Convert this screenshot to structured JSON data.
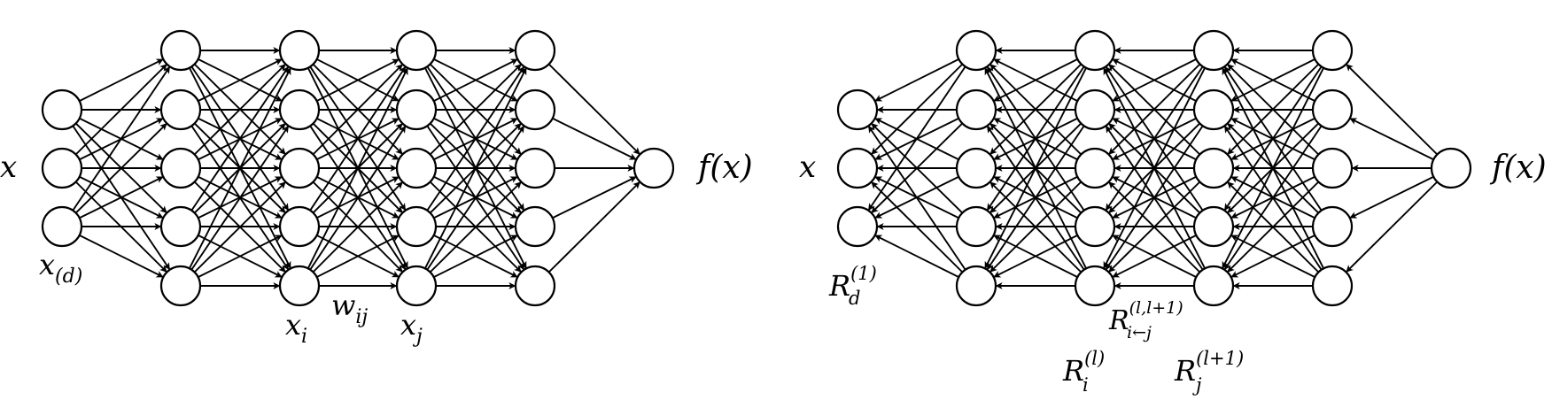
{
  "diagrams": [
    {
      "id": "forward-pass",
      "input_label": "x",
      "output_label": "f(x)",
      "layer_sizes": [
        3,
        5,
        5,
        5,
        5,
        1
      ],
      "edge_direction": "forward",
      "annotations": {
        "input_dim": {
          "base": "x",
          "sub": "(d)"
        },
        "neuron_i": {
          "base": "x",
          "sub": "i"
        },
        "weight": {
          "base": "w",
          "sub": "ij"
        },
        "neuron_j": {
          "base": "x",
          "sub": "j"
        }
      }
    },
    {
      "id": "relevance-backward-pass",
      "input_label": "x",
      "output_label": "f(x)",
      "layer_sizes": [
        3,
        5,
        5,
        5,
        5,
        1
      ],
      "edge_direction": "backward",
      "annotations": {
        "input_relevance": {
          "base": "R",
          "sub": "d",
          "sup": "(1)"
        },
        "message": {
          "base": "R",
          "sub": "i←j",
          "sup": "(l,l+1)"
        },
        "relevance_i": {
          "base": "R",
          "sub": "i",
          "sup": "(l)"
        },
        "relevance_j": {
          "base": "R",
          "sub": "j",
          "sup": "(l+1)"
        }
      }
    }
  ],
  "colors": {
    "stroke": "#000000",
    "fill": "#ffffff"
  }
}
